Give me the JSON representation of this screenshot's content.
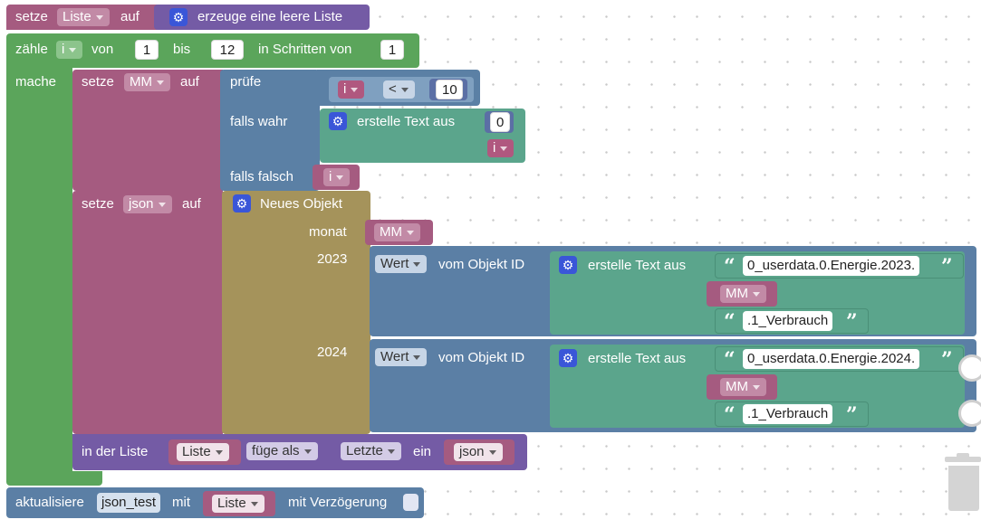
{
  "colors": {
    "variables": "#a55b80",
    "lists": "#745ba5",
    "loops": "#5ba55b",
    "logic": "#5b80a5",
    "text": "#5ba58c",
    "objects": "#a5935b",
    "iobroker": "#5b7fa5"
  },
  "block_set_list": {
    "setze": "setze",
    "variable": "Liste",
    "auf": "auf",
    "create_empty": "erzeuge eine leere Liste"
  },
  "block_count": {
    "zaehle": "zähle",
    "variable": "i",
    "von": "von",
    "from_value": "1",
    "bis": "bis",
    "to_value": "12",
    "step_label": "in Schritten von",
    "step_value": "1",
    "mache": "mache"
  },
  "block_set_mm": {
    "setze": "setze",
    "variable": "MM",
    "auf": "auf",
    "pruefe": "prüfe",
    "compare_left": "i",
    "operator": "<",
    "compare_right": "10",
    "falls_wahr": "falls wahr",
    "create_text": "erstelle Text aus",
    "text_zero": "0",
    "text_var": "i",
    "falls_falsch": "falls falsch",
    "false_var": "i"
  },
  "block_set_json": {
    "setze": "setze",
    "variable": "json",
    "auf": "auf",
    "new_object": "Neues Objekt",
    "key_monat": "monat",
    "monat_var": "MM",
    "key_2023": "2023",
    "key_2024": "2024",
    "rows": [
      {
        "attr": "Wert",
        "of_object": "vom Objekt ID",
        "create_text": "erstelle Text aus",
        "prefix": "0_userdata.0.Energie.2023.",
        "var": "MM",
        "suffix": ".1_Verbrauch"
      },
      {
        "attr": "Wert",
        "of_object": "vom Objekt ID",
        "create_text": "erstelle Text aus",
        "prefix": "0_userdata.0.Energie.2024.",
        "var": "MM",
        "suffix": ".1_Verbrauch"
      }
    ]
  },
  "block_list_insert": {
    "in_list": "in der Liste",
    "list_var": "Liste",
    "mode": "füge als",
    "where": "Letzte",
    "ein": "ein",
    "item_var": "json"
  },
  "block_update": {
    "aktualisiere": "aktualisiere",
    "state": "json_test",
    "mit": "mit",
    "value_var": "Liste",
    "delay_label": "mit Verzögerung"
  },
  "icons": {
    "gear": "gear-icon",
    "open_quote": "open-quote-icon",
    "close_quote": "close-quote-icon",
    "trash": "trash-can-icon",
    "dropdown": "chevron-down-icon"
  }
}
